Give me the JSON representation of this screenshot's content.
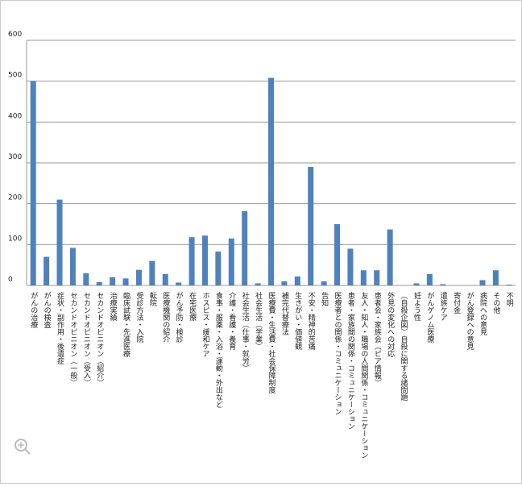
{
  "chart_data": {
    "type": "bar",
    "categories": [
      "がんの治療",
      "がんの検査",
      "症状・副作用・後遺症",
      "セカンドオピニオン（一般）",
      "セカンドオピニオン（受入）",
      "セカンドオピニオン（紹介）",
      "治療実績",
      "臨床試験・先進医療",
      "受診方法・入院",
      "転院",
      "医療機関の紹介",
      "がん予防・検診",
      "在宅医療",
      "ホスピス・緩和ケア",
      "食事・服薬・入浴・運動・外出など",
      "介護・看護・養育",
      "社会生活（仕事・就労）",
      "社会生活（学業）",
      "医療費・生活費・社会保障制度",
      "補完代替療法",
      "生きがい・価値観",
      "不安・精神的苦痛",
      "告知",
      "医療者との関係・コミュニケーション",
      "患者・家族間の関係・コミュニケーション",
      "友人・知人・職場の人間関係・コミュニケーション",
      "患者会・家族会（ピア情報）",
      "外見の変化への対応",
      "（自殺企図）自殺に関する諸問題",
      "妊よう性",
      "がんゲノム医療",
      "遺族ケア",
      "寄付金",
      "がん登録への意見",
      "病院への意見",
      "その他",
      "不明"
    ],
    "values": [
      500,
      70,
      210,
      92,
      30,
      8,
      20,
      17,
      38,
      60,
      28,
      7,
      118,
      122,
      83,
      115,
      182,
      5,
      508,
      10,
      22,
      290,
      10,
      150,
      90,
      37,
      37,
      137,
      0,
      5,
      28,
      3,
      0,
      0,
      13,
      37,
      2
    ],
    "color": "#4f81bd",
    "ylim": [
      0,
      600
    ],
    "yticks": [
      0,
      100,
      200,
      300,
      400,
      500,
      600
    ],
    "grid": true
  }
}
